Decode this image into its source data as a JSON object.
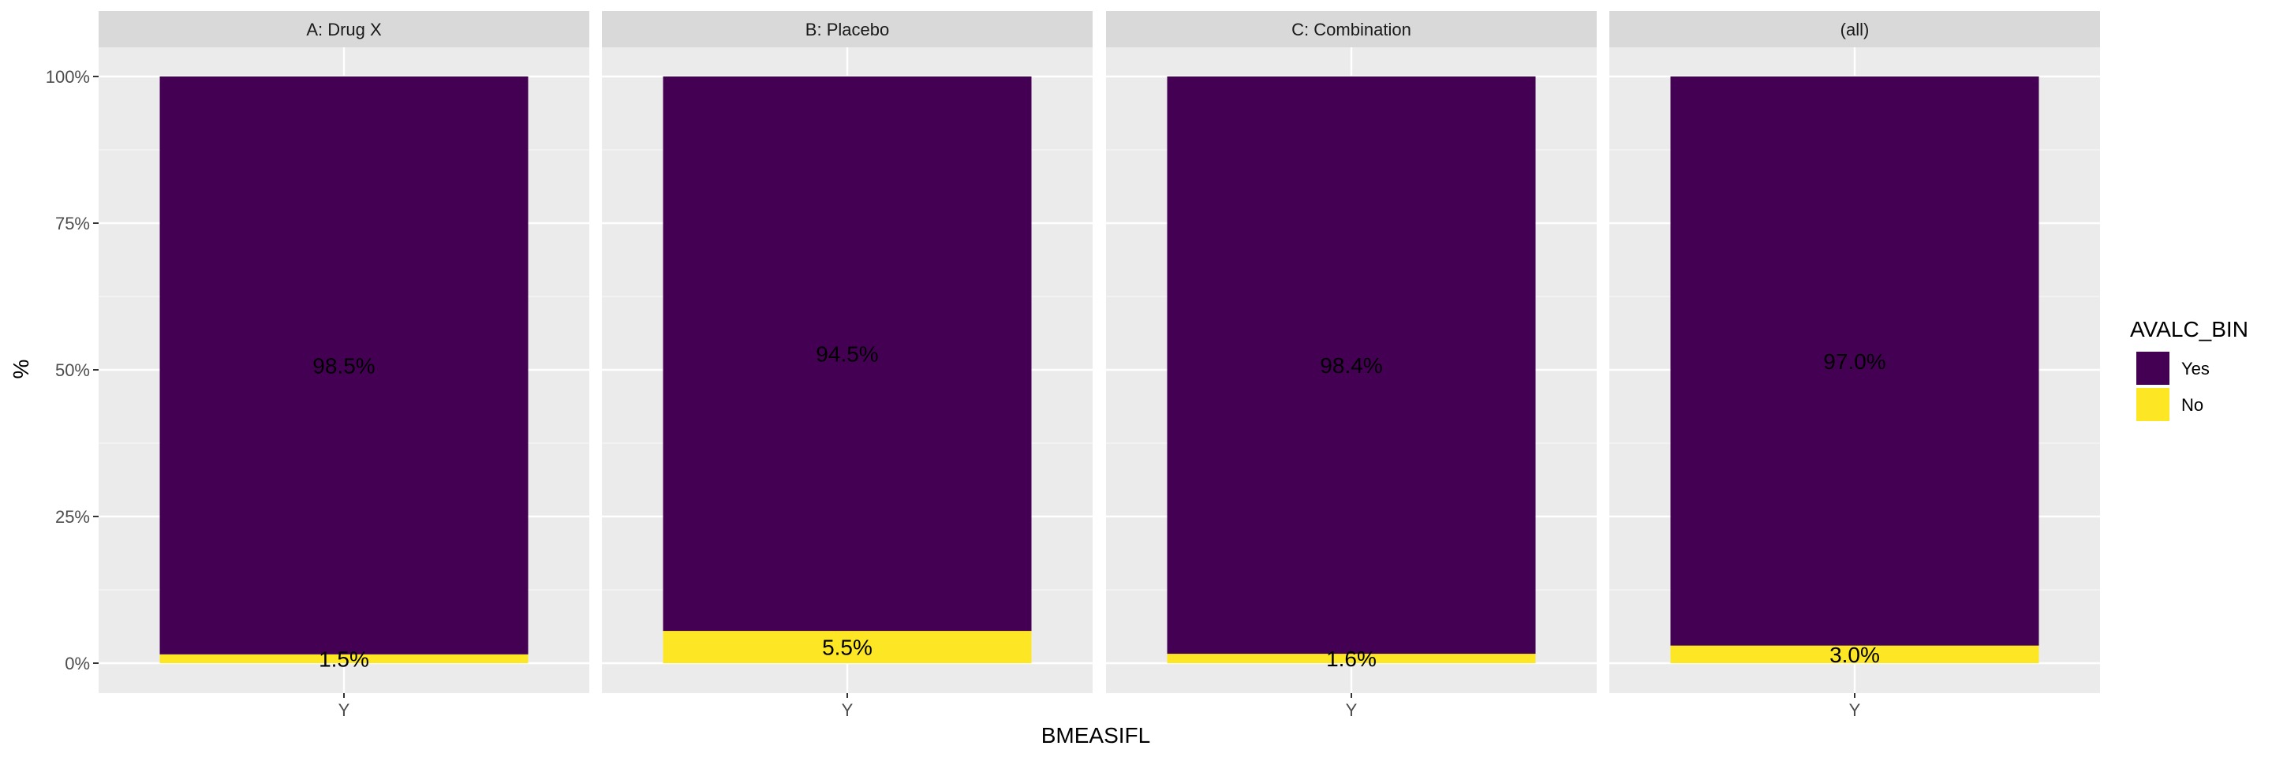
{
  "chart_data": {
    "type": "bar",
    "stacked": true,
    "facets": [
      {
        "label": "A: Drug X",
        "category": "Y",
        "segments": [
          {
            "series": "No",
            "value": 1.5,
            "label": "1.5%"
          },
          {
            "series": "Yes",
            "value": 98.5,
            "label": "98.5%"
          }
        ]
      },
      {
        "label": "B: Placebo",
        "category": "Y",
        "segments": [
          {
            "series": "No",
            "value": 5.5,
            "label": "5.5%"
          },
          {
            "series": "Yes",
            "value": 94.5,
            "label": "94.5%"
          }
        ]
      },
      {
        "label": "C: Combination",
        "category": "Y",
        "segments": [
          {
            "series": "No",
            "value": 1.6,
            "label": "1.6%"
          },
          {
            "series": "Yes",
            "value": 98.4,
            "label": "98.4%"
          }
        ]
      },
      {
        "label": "(all)",
        "category": "Y",
        "segments": [
          {
            "series": "No",
            "value": 3.0,
            "label": "3.0%"
          },
          {
            "series": "Yes",
            "value": 97.0,
            "label": "97.0%"
          }
        ]
      }
    ],
    "series": [
      {
        "name": "Yes",
        "color": "#440154"
      },
      {
        "name": "No",
        "color": "#fde725"
      }
    ],
    "xlabel": "BMEASIFL",
    "ylabel": "%",
    "ylim": [
      0,
      100
    ],
    "yticks": [
      0,
      25,
      50,
      75,
      100
    ],
    "ytick_labels": [
      "0%",
      "25%",
      "50%",
      "75%",
      "100%"
    ],
    "legend": {
      "title": "AVALC_BIN",
      "position": "right"
    },
    "grid": true
  }
}
